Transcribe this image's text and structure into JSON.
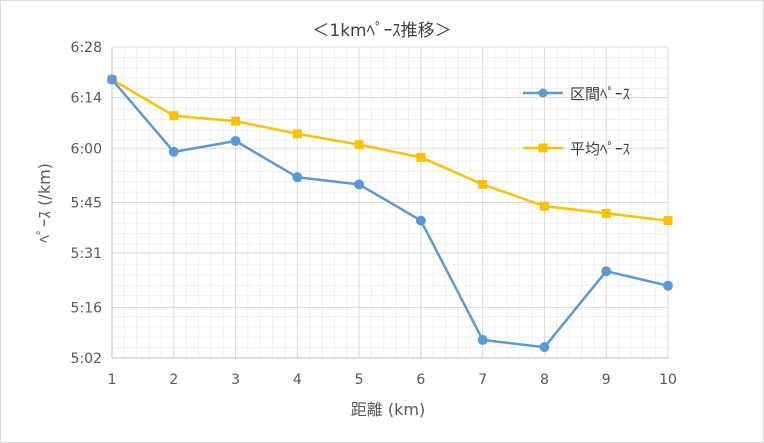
{
  "chart_data": {
    "type": "line",
    "title": "＜1kmﾍﾟｰｽ推移＞",
    "xlabel": "距離 (km)",
    "ylabel": "ﾍﾟｰｽ (/km)",
    "x": [
      1,
      2,
      3,
      4,
      5,
      6,
      7,
      8,
      9,
      10
    ],
    "x_tick_labels": [
      "1",
      "2",
      "3",
      "4",
      "5",
      "6",
      "7",
      "8",
      "9",
      "10"
    ],
    "y_unit": "seconds per km",
    "ylim": [
      302,
      388
    ],
    "y_ticks": [
      302,
      316,
      331,
      345,
      360,
      374,
      388
    ],
    "y_tick_labels": [
      "5:02",
      "5:16",
      "5:31",
      "5:45",
      "6:00",
      "6:14",
      "6:28"
    ],
    "grid": true,
    "legend_position": "right",
    "series": [
      {
        "name": "区間ﾍﾟｰｽ",
        "color": "#5b9bd5",
        "marker": "circle",
        "values": [
          379,
          359,
          362,
          352,
          350,
          340,
          307,
          305,
          326,
          322
        ]
      },
      {
        "name": "平均ﾍﾟｰｽ",
        "color": "#ffc000",
        "marker": "square",
        "values": [
          379,
          369,
          367.5,
          364,
          361,
          357.5,
          350,
          344,
          342,
          340
        ]
      }
    ]
  }
}
